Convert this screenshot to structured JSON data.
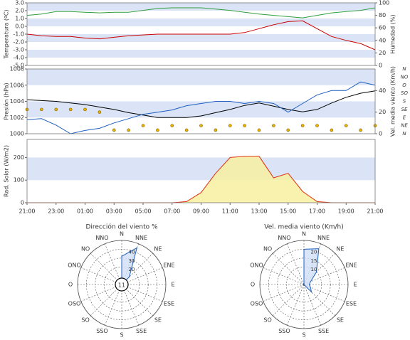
{
  "chart_data": [
    {
      "type": "line",
      "ylabel": "Temperatura (ºC)",
      "y2label": "Humedad (%)",
      "xlim": [
        0,
        24
      ],
      "x": [
        0,
        1,
        2,
        3,
        4,
        5,
        6,
        7,
        8,
        9,
        10,
        11,
        12,
        13,
        14,
        15,
        16,
        17,
        18,
        19,
        20,
        21,
        22,
        23,
        24
      ],
      "ylim": [
        -5,
        3
      ],
      "yticks": [
        {
          "value": -5,
          "label": "-5.0"
        },
        {
          "value": -4,
          "label": "-4.0"
        },
        {
          "value": -3,
          "label": "-3.0"
        },
        {
          "value": -2,
          "label": "-2.0"
        },
        {
          "value": -1,
          "label": "-1.0"
        },
        {
          "value": 0,
          "label": "0.0"
        },
        {
          "value": 1,
          "label": "1.0"
        },
        {
          "value": 2,
          "label": "2.0"
        },
        {
          "value": 3,
          "label": "3.0"
        }
      ],
      "y2lim": [
        0,
        100
      ],
      "y2ticks": [
        0,
        20,
        40,
        60,
        80,
        100
      ],
      "bands": true,
      "series": [
        {
          "name": "Temperatura",
          "type": "line",
          "color": "#cc0000",
          "values": [
            -1.0,
            -1.2,
            -1.3,
            -1.3,
            -1.5,
            -1.6,
            -1.4,
            -1.2,
            -1.1,
            -1.0,
            -1.0,
            -1.0,
            -1.0,
            -1.0,
            -1.0,
            -0.8,
            -0.3,
            0.2,
            0.6,
            0.7,
            -0.3,
            -1.3,
            -1.8,
            -2.2,
            -3.0
          ]
        },
        {
          "name": "Humedad",
          "type": "line",
          "axis": "y2",
          "color": "#2e9e3e",
          "values": [
            80,
            82,
            86,
            86,
            85,
            84,
            85,
            85,
            88,
            91,
            92,
            92,
            92,
            90,
            88,
            85,
            82,
            80,
            78,
            76,
            80,
            84,
            86,
            88,
            92
          ]
        }
      ]
    },
    {
      "type": "line",
      "ylabel": "Presión (hPa)",
      "y2label": "Vel. media viento (Km/h)",
      "xlim": [
        0,
        24
      ],
      "x": [
        0,
        1,
        2,
        3,
        4,
        5,
        6,
        7,
        8,
        9,
        10,
        11,
        12,
        13,
        14,
        15,
        16,
        17,
        18,
        19,
        20,
        21,
        22,
        23,
        24
      ],
      "ylim": [
        1000,
        1008
      ],
      "yticks": [
        1000,
        1002,
        1004,
        1006,
        1008
      ],
      "y2lim": [
        0,
        60
      ],
      "y2ticks": [
        0,
        20,
        40
      ],
      "y3lim": [
        0,
        360
      ],
      "y3ticks": [
        {
          "value": 0,
          "label": "N"
        },
        {
          "value": 45,
          "label": "NE"
        },
        {
          "value": 90,
          "label": "E"
        },
        {
          "value": 135,
          "label": "SE"
        },
        {
          "value": 180,
          "label": "S"
        },
        {
          "value": 225,
          "label": "SO"
        },
        {
          "value": 270,
          "label": "O"
        },
        {
          "value": 315,
          "label": "NO"
        },
        {
          "value": 360,
          "label": "N"
        }
      ],
      "bands": true,
      "series": [
        {
          "name": "Presión",
          "type": "line",
          "color": "#000000",
          "values": [
            1004.2,
            1004.1,
            1004.0,
            1003.8,
            1003.6,
            1003.3,
            1003.0,
            1002.6,
            1002.3,
            1002.0,
            1002.0,
            1002.0,
            1002.2,
            1002.6,
            1003.0,
            1003.5,
            1003.8,
            1003.4,
            1003.0,
            1002.7,
            1003.0,
            1003.8,
            1004.5,
            1005.0,
            1005.3
          ]
        },
        {
          "name": "Vel. media viento",
          "type": "line",
          "axis": "y2",
          "color": "#1f5fbf",
          "values": [
            13,
            14,
            8,
            0,
            3,
            5,
            10,
            14,
            18,
            20,
            22,
            26,
            28,
            30,
            30,
            28,
            30,
            28,
            20,
            28,
            36,
            40,
            40,
            48,
            45
          ]
        },
        {
          "name": "Dirección",
          "type": "scatter",
          "axis": "y3",
          "color": "#e8b400",
          "values": [
            135,
            135,
            135,
            135,
            135,
            120,
            20,
            20,
            45,
            20,
            45,
            20,
            45,
            20,
            45,
            45,
            20,
            45,
            20,
            45,
            45,
            20,
            45,
            20,
            45
          ]
        }
      ]
    },
    {
      "type": "line",
      "ylabel": "Rad. Solar (W/m2)",
      "xlim": [
        0,
        24
      ],
      "x": [
        0,
        1,
        2,
        3,
        4,
        5,
        6,
        7,
        8,
        9,
        10,
        11,
        12,
        13,
        14,
        15,
        16,
        17,
        18,
        19,
        20,
        21,
        22,
        23,
        24
      ],
      "xticks": [
        {
          "value": 0,
          "label": "21:00"
        },
        {
          "value": 2,
          "label": "23:00"
        },
        {
          "value": 4,
          "label": "01:00"
        },
        {
          "value": 6,
          "label": "03:00"
        },
        {
          "value": 8,
          "label": "05:00"
        },
        {
          "value": 10,
          "label": "07:00"
        },
        {
          "value": 12,
          "label": "09:00"
        },
        {
          "value": 14,
          "label": "11:00"
        },
        {
          "value": 16,
          "label": "13:00"
        },
        {
          "value": 18,
          "label": "15:00"
        },
        {
          "value": 20,
          "label": "17:00"
        },
        {
          "value": 22,
          "label": "19:00"
        },
        {
          "value": 24,
          "label": "21:00"
        }
      ],
      "ylim": [
        0,
        280
      ],
      "yticks": [
        0,
        100,
        200
      ],
      "bands": true,
      "series": [
        {
          "name": "Rad. Solar",
          "type": "area",
          "color": "#e03010",
          "fill": "#f7f0a0",
          "values": [
            0,
            0,
            0,
            0,
            0,
            0,
            0,
            0,
            0,
            0,
            0,
            5,
            45,
            130,
            200,
            205,
            205,
            110,
            130,
            50,
            5,
            0,
            0,
            0,
            0
          ]
        }
      ]
    },
    {
      "type": "polar",
      "title": "Dirección del viento %",
      "directions": [
        "N",
        "NNE",
        "NE",
        "ENE",
        "E",
        "ESE",
        "SE",
        "SSE",
        "S",
        "SSO",
        "SO",
        "OSO",
        "O",
        "ONO",
        "NO",
        "NNO"
      ],
      "values": [
        32,
        45,
        12,
        0,
        0,
        0,
        0,
        0,
        0,
        0,
        0,
        0,
        0,
        0,
        0,
        0
      ],
      "rlim": [
        0,
        50
      ],
      "rticks": [
        20,
        30,
        40
      ],
      "calm": 11,
      "color": "#1f5fbf",
      "fill": "#cfe0f7"
    },
    {
      "type": "polar",
      "title": "Vel. media viento (Km/h)",
      "directions": [
        "N",
        "NNE",
        "NE",
        "ENE",
        "E",
        "ESE",
        "SE",
        "SSE",
        "S",
        "SSO",
        "SO",
        "OSO",
        "O",
        "ONO",
        "NO",
        "NNO"
      ],
      "values": [
        20,
        22,
        10,
        4,
        3,
        4,
        6,
        0,
        0,
        0,
        0,
        0,
        0,
        0,
        0,
        0
      ],
      "rlim": [
        0,
        25
      ],
      "rticks": [
        10,
        15,
        20
      ],
      "color": "#1f5fbf",
      "fill": "#cfe0f7"
    }
  ]
}
